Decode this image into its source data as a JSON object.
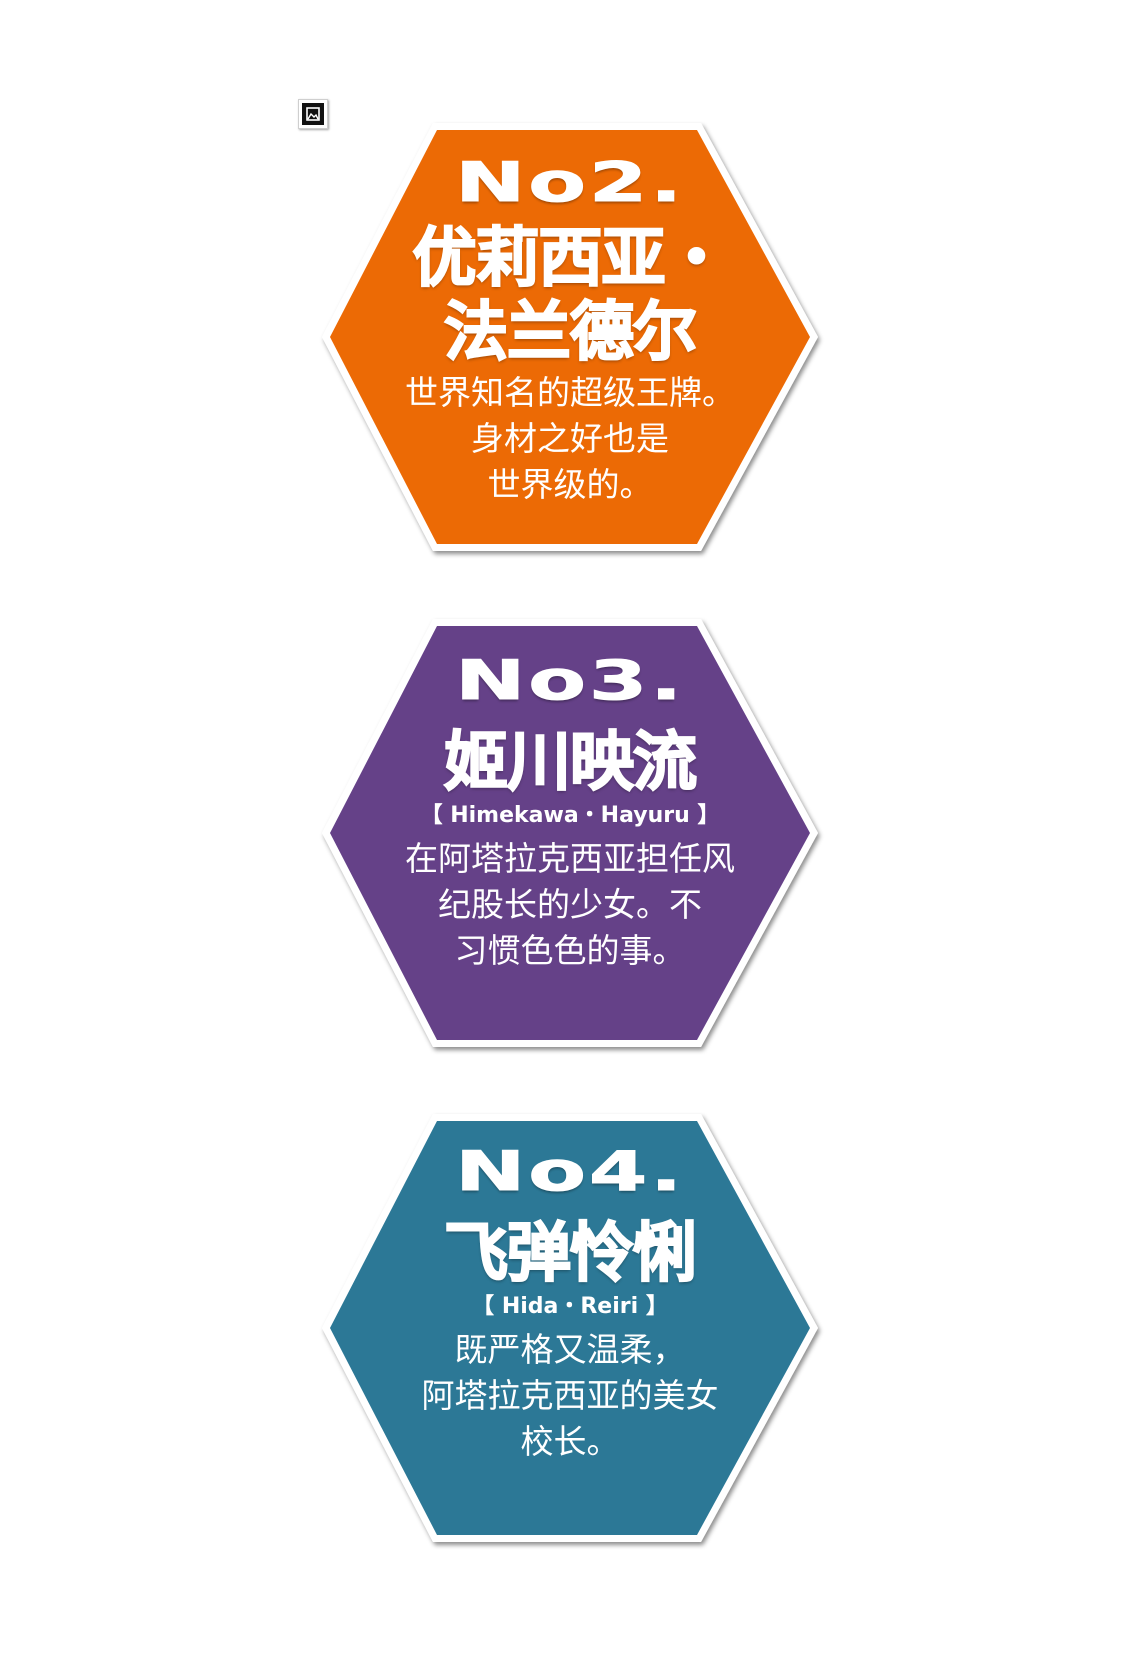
{
  "colors": {
    "orange": "#ec6a05",
    "purple": "#654188",
    "teal": "#2c7896",
    "border": "#ffffff"
  },
  "corner_icon": "image-icon",
  "cards": [
    {
      "number": "No2.",
      "name_line1": "优莉西亚・",
      "name_line2": "法兰德尔",
      "romaji": "",
      "desc": [
        "世界知名的超级王牌。",
        "身材之好也是",
        "世界级的。"
      ]
    },
    {
      "number": "No3.",
      "name_line1": "姬川映流",
      "name_line2": "",
      "romaji": "【 Himekawa・Hayuru 】",
      "desc": [
        "在阿塔拉克西亚担任风",
        "纪股长的少女。不",
        "习惯色色的事。"
      ]
    },
    {
      "number": "No4.",
      "name_line1": "飞弹怜悧",
      "name_line2": "",
      "romaji": "【 Hida・Reiri 】",
      "desc": [
        "既严格又温柔，",
        "阿塔拉克西亚的美女",
        "校长。"
      ]
    }
  ]
}
